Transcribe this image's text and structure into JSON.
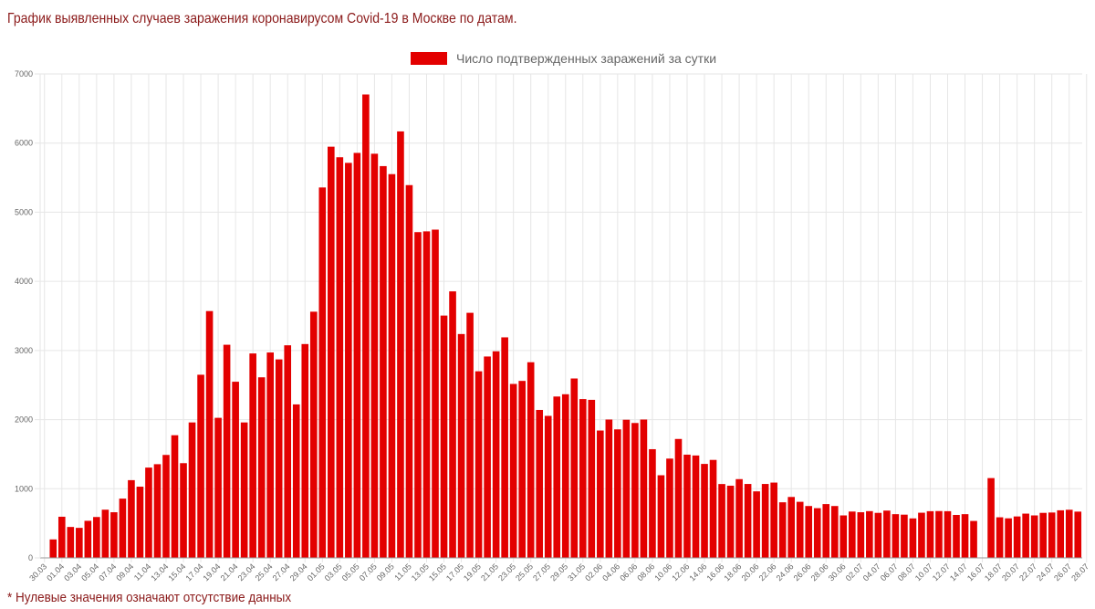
{
  "page": {
    "title": "График выявленных случаев заражения коронавирусом Covid-19 в Москве по датам.",
    "footnote": "* Нулевые значения означают отсутствие данных"
  },
  "colors": {
    "bar": "#e30000",
    "grid": "#e6e6e6",
    "axis": "#999999",
    "title": "#8b1a1a"
  },
  "chart_data": {
    "type": "bar",
    "title": "",
    "legend": {
      "label": "Число подтвержденных заражений за сутки",
      "position": "top"
    },
    "xlabel": "",
    "ylabel": "",
    "ylim": [
      0,
      7000
    ],
    "yticks": [
      0,
      1000,
      2000,
      3000,
      4000,
      5000,
      6000,
      7000
    ],
    "grid": true,
    "start_date": "2020-03-30",
    "tick_labels": [
      "30.03",
      "01.04",
      "03.04",
      "05.04",
      "07.04",
      "09.04",
      "11.04",
      "13.04",
      "15.04",
      "17.04",
      "19.04",
      "21.04",
      "23.04",
      "25.04",
      "27.04",
      "29.04",
      "01.05",
      "03.05",
      "05.05",
      "07.05",
      "09.05",
      "11.05",
      "13.05",
      "15.05",
      "17.05",
      "19.05",
      "21.05",
      "23.05",
      "25.05",
      "27.05",
      "29.05",
      "31.05",
      "02.06",
      "04.06",
      "06.06",
      "08.06",
      "10.06",
      "12.06",
      "14.06",
      "16.06",
      "18.06",
      "20.06",
      "22.06",
      "24.06",
      "26.06",
      "28.06",
      "30.06",
      "02.07",
      "04.07",
      "06.07",
      "08.07",
      "10.07",
      "12.07",
      "14.07",
      "16.07",
      "18.07",
      "20.07",
      "22.07",
      "24.07",
      "26.07",
      "28.07"
    ],
    "series": [
      {
        "name": "Число подтвержденных заражений за сутки",
        "values": [
          0,
          267,
          595,
          447,
          434,
          536,
          591,
          697,
          660,
          857,
          1124,
          1030,
          1306,
          1355,
          1489,
          1774,
          1370,
          1959,
          2649,
          3570,
          2026,
          3083,
          2548,
          1959,
          2957,
          2612,
          2971,
          2871,
          3075,
          2220,
          3093,
          3561,
          5358,
          5948,
          5795,
          5714,
          5858,
          6703,
          5846,
          5667,
          5551,
          6169,
          5392,
          4712,
          4723,
          4748,
          3505,
          3855,
          3238,
          3545,
          2699,
          2913,
          2988,
          3190,
          2516,
          2560,
          2830,
          2140,
          2054,
          2334,
          2367,
          2595,
          2297,
          2286,
          1842,
          2001,
          1859,
          1998,
          1951,
          2001,
          1572,
          1195,
          1436,
          1720,
          1493,
          1481,
          1359,
          1417,
          1068,
          1044,
          1139,
          1069,
          962,
          1069,
          1089,
          804,
          881,
          811,
          750,
          719,
          778,
          750,
          614,
          670,
          660,
          676,
          651,
          684,
          632,
          625,
          571,
          653,
          675,
          677,
          675,
          621,
          632,
          534,
          0,
          1154,
          587,
          572,
          599,
          640,
          614,
          651,
          656,
          688,
          696,
          669
        ]
      }
    ]
  }
}
